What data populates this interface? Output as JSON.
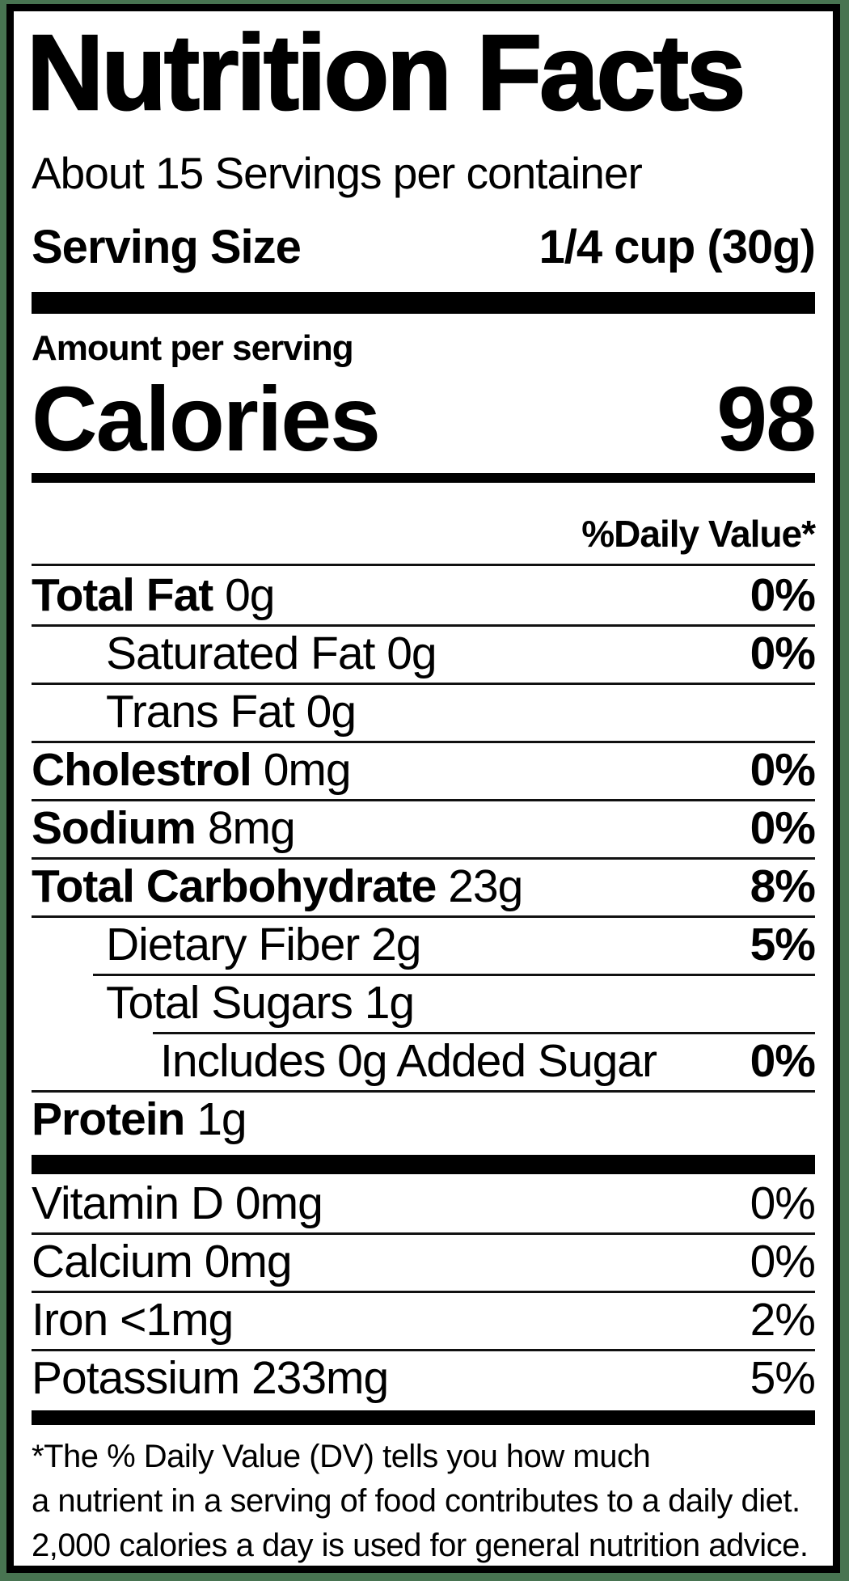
{
  "label": {
    "title": "Nutrition Facts",
    "servings_line": "About 15 Servings per container",
    "serving_size": {
      "label": "Serving Size",
      "value": "1/4 cup (30g)"
    },
    "amount_per_serving": "Amount per serving",
    "calories": {
      "label": "Calories",
      "value": "98"
    },
    "daily_value_header": "%Daily Value*",
    "nutrients": [
      {
        "name": "Total Fat",
        "amount": "0g",
        "dv": "0%",
        "bold": true,
        "indent": 0,
        "sep": "none"
      },
      {
        "name": "Saturated Fat",
        "amount": "0g",
        "dv": "0%",
        "bold": false,
        "indent": 1,
        "sep": "full"
      },
      {
        "name": "Trans Fat",
        "amount": "0g",
        "dv": "",
        "bold": false,
        "indent": 1,
        "sep": "full"
      },
      {
        "name": "Cholestrol",
        "amount": "0mg",
        "dv": "0%",
        "bold": true,
        "indent": 0,
        "sep": "full"
      },
      {
        "name": "Sodium",
        "amount": "8mg",
        "dv": "0%",
        "bold": true,
        "indent": 0,
        "sep": "full"
      },
      {
        "name": "Total Carbohydrate",
        "amount": "23g",
        "dv": "8%",
        "bold": true,
        "indent": 0,
        "sep": "full"
      },
      {
        "name": "Dietary Fiber",
        "amount": "2g",
        "dv": "5%",
        "bold": false,
        "indent": 1,
        "sep": "full"
      },
      {
        "name": "Total Sugars",
        "amount": "1g",
        "dv": "",
        "bold": false,
        "indent": 1,
        "sep": "indent1"
      },
      {
        "name": "Includes 0g Added Sugar",
        "amount": "",
        "dv": "0%",
        "bold": false,
        "indent": 2,
        "sep": "indent2"
      },
      {
        "name": "Protein",
        "amount": "1g",
        "dv": "",
        "bold": true,
        "indent": 0,
        "sep": "full"
      }
    ],
    "vitamins": [
      {
        "name": "Vitamin D",
        "amount": "0mg",
        "dv": "0%",
        "bold": false,
        "indent": 0,
        "sep": "none"
      },
      {
        "name": "Calcium",
        "amount": "0mg",
        "dv": "0%",
        "bold": false,
        "indent": 0,
        "sep": "full"
      },
      {
        "name": "Iron",
        "amount": "<1mg",
        "dv": "2%",
        "bold": false,
        "indent": 0,
        "sep": "full"
      },
      {
        "name": "Potassium",
        "amount": "233mg",
        "dv": "5%",
        "bold": false,
        "indent": 0,
        "sep": "full"
      }
    ],
    "footnote_lines": [
      "*The % Daily Value (DV) tells you how much",
      "a nutrient in a serving of food contributes to a daily diet.",
      "2,000 calories a day is used for general nutrition advice."
    ],
    "colors": {
      "frame_green": "#487451",
      "ink": "#000000"
    }
  }
}
